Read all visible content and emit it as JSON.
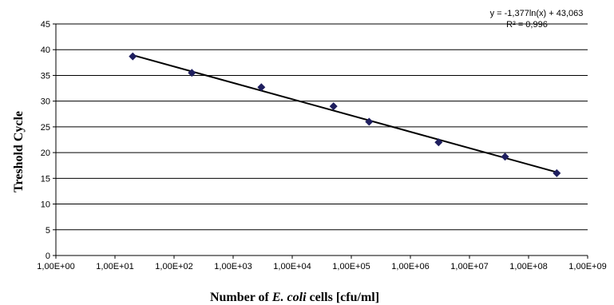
{
  "chart_data": {
    "type": "scatter",
    "xlabel": "Number of E. coli cells [cfu/ml]",
    "xlabel_parts": {
      "before": "Number of ",
      "italic": "E. coli",
      "after": " cells [cfu/ml]"
    },
    "ylabel": "Treshold Cycle",
    "x_scale": "log10",
    "xlim": [
      1,
      1000000000
    ],
    "ylim": [
      0,
      45
    ],
    "x_tick_labels": [
      "1,00E+00",
      "1,00E+01",
      "1,00E+02",
      "1,00E+03",
      "1,00E+04",
      "1,00E+05",
      "1,00E+06",
      "1,00E+07",
      "1,00E+08",
      "1,00E+09"
    ],
    "y_tick_labels": [
      "0",
      "5",
      "10",
      "15",
      "20",
      "25",
      "30",
      "35",
      "40",
      "45"
    ],
    "grid": "horizontal",
    "series": [
      {
        "x": [
          20,
          200,
          3000,
          50000,
          200000,
          3000000,
          40000000,
          300000000
        ],
        "y": [
          38.7,
          35.5,
          32.7,
          29,
          26,
          22,
          19.2,
          16
        ],
        "color": "#1f1f5f",
        "marker": "diamond"
      }
    ],
    "trendline": {
      "type": "logarithmic",
      "slope": -1.377,
      "intercept": 43.063,
      "x_range": [
        20,
        300000000
      ],
      "equation": "y = -1,377ln(x) + 43,063",
      "r_squared": "R² = 0,996"
    }
  }
}
